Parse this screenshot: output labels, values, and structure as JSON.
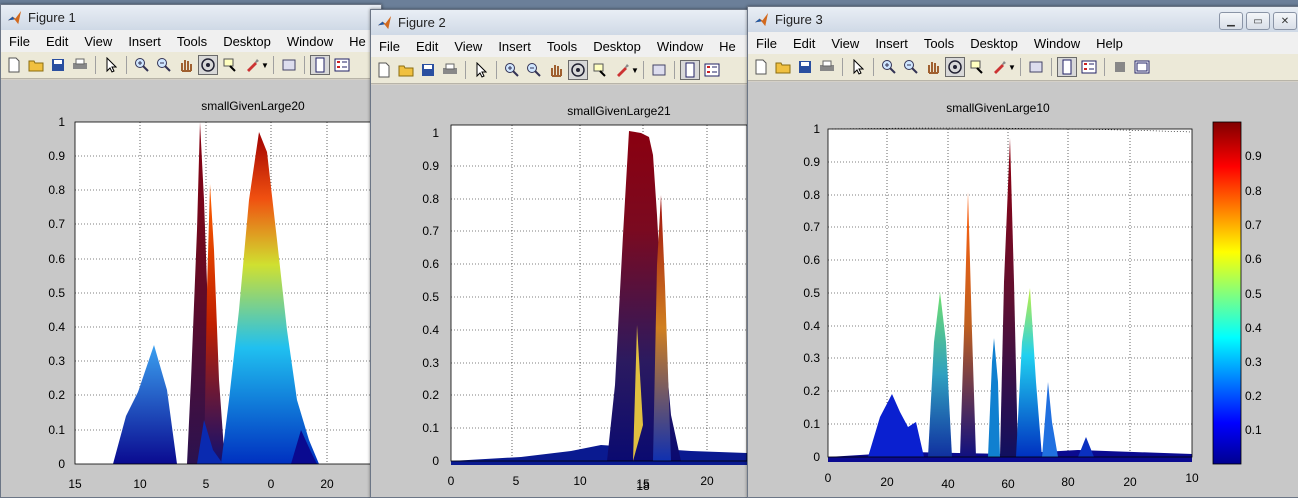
{
  "menu": [
    "File",
    "Edit",
    "View",
    "Insert",
    "Tools",
    "Desktop",
    "Window",
    "Help"
  ],
  "figures": [
    {
      "window_title": "Figure 1",
      "menu_truncated_last": "He",
      "plot_title": "smallGivenLarge20",
      "yticks": [
        "1",
        "0.9",
        "0.8",
        "0.7",
        "0.6",
        "0.5",
        "0.4",
        "0.3",
        "0.2",
        "0.1",
        "0"
      ],
      "xticks": [
        "15",
        "10",
        "5",
        "0",
        "20"
      ]
    },
    {
      "window_title": "Figure 2",
      "menu_truncated_last": "He",
      "plot_title": "smallGivenLarge21",
      "yticks": [
        "1",
        "0.9",
        "0.8",
        "0.7",
        "0.6",
        "0.5",
        "0.4",
        "0.3",
        "0.2",
        "0.1",
        "0"
      ],
      "xticks": [
        "0",
        "5",
        "10",
        "18",
        "20"
      ],
      "xticks_overlap": "15"
    },
    {
      "window_title": "Figure 3",
      "plot_title": "smallGivenLarge10",
      "yticks": [
        "1",
        "0.9",
        "0.8",
        "0.7",
        "0.6",
        "0.5",
        "0.4",
        "0.3",
        "0.2",
        "0.1",
        "0"
      ],
      "xticks": [
        "0",
        "20",
        "40",
        "60",
        "80",
        "20",
        "10",
        "0"
      ],
      "colorbar_ticks": [
        "0.9",
        "0.8",
        "0.7",
        "0.6",
        "0.5",
        "0.4",
        "0.3",
        "0.2",
        "0.1"
      ]
    }
  ],
  "colors": {
    "jet_low": "#00008f",
    "jet_high": "#800000",
    "figure_bg": "#c8c8c8"
  }
}
